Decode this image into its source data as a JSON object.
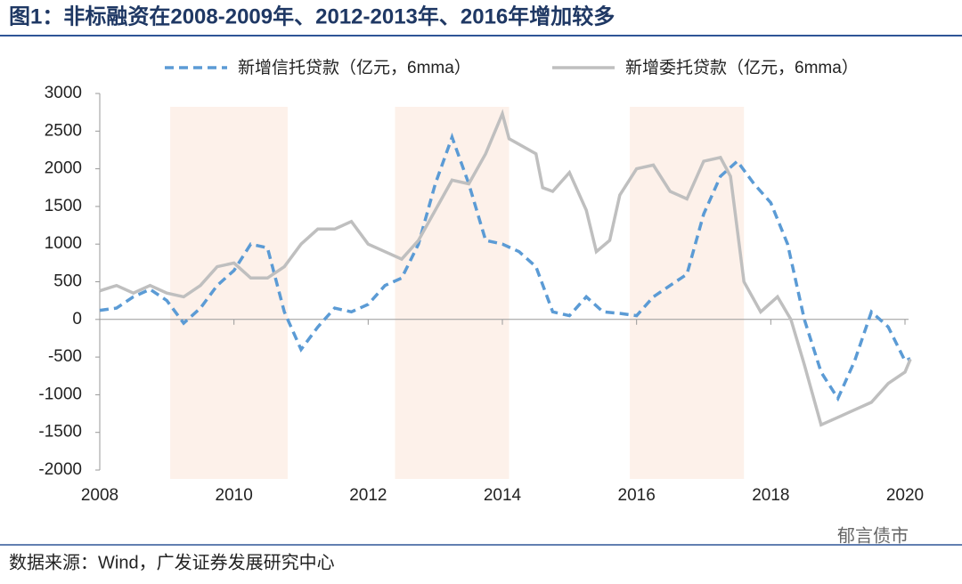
{
  "chart_data": {
    "type": "line",
    "title": "图1：非标融资在2008-2009年、2012-2013年、2016年增加较多",
    "source": "数据来源：Wind，广发证券发展研究中心",
    "watermark": "郁言债市",
    "xlim": [
      2008,
      2020
    ],
    "xticks": [
      2008,
      2010,
      2012,
      2014,
      2016,
      2018,
      2020
    ],
    "ylim": [
      -2000,
      3000
    ],
    "yticks": [
      -2000,
      -1500,
      -1000,
      -500,
      0,
      500,
      1000,
      1500,
      2000,
      2500,
      3000
    ],
    "highlights": [
      [
        2009.05,
        2010.8
      ],
      [
        2012.4,
        2014.1
      ],
      [
        2015.9,
        2017.6
      ]
    ],
    "highlight_color": "#fdf1ea",
    "series": [
      {
        "name": "新增信托贷款（亿元，6mma）",
        "color": "#5b9bd5",
        "dash": true,
        "x": [
          2008.0,
          2008.25,
          2008.5,
          2008.75,
          2009.0,
          2009.25,
          2009.5,
          2009.75,
          2010.0,
          2010.25,
          2010.5,
          2010.75,
          2011.0,
          2011.25,
          2011.5,
          2011.75,
          2012.0,
          2012.25,
          2012.5,
          2012.75,
          2013.0,
          2013.25,
          2013.5,
          2013.75,
          2014.0,
          2014.25,
          2014.5,
          2014.75,
          2015.0,
          2015.25,
          2015.5,
          2015.75,
          2016.0,
          2016.25,
          2016.5,
          2016.75,
          2017.0,
          2017.25,
          2017.5,
          2017.75,
          2018.0,
          2018.25,
          2018.5,
          2018.75,
          2019.0,
          2019.25,
          2019.5,
          2019.75,
          2020.0,
          2020.08
        ],
        "values": [
          120,
          150,
          300,
          400,
          250,
          -50,
          150,
          450,
          650,
          1000,
          950,
          100,
          -400,
          -100,
          150,
          100,
          200,
          450,
          550,
          1000,
          1800,
          2420,
          1800,
          1050,
          1000,
          900,
          700,
          100,
          50,
          300,
          100,
          80,
          50,
          300,
          450,
          600,
          1400,
          1900,
          2100,
          1800,
          1550,
          1000,
          0,
          -700,
          -1050,
          -550,
          100,
          -100,
          -550,
          -520
        ]
      },
      {
        "name": "新增委托贷款（亿元，6mma）",
        "color": "#bfbfbf",
        "dash": false,
        "x": [
          2008.0,
          2008.25,
          2008.5,
          2008.75,
          2009.0,
          2009.25,
          2009.5,
          2009.75,
          2010.0,
          2010.25,
          2010.5,
          2010.75,
          2011.0,
          2011.25,
          2011.5,
          2011.75,
          2012.0,
          2012.25,
          2012.5,
          2012.75,
          2013.0,
          2013.25,
          2013.5,
          2013.75,
          2014.0,
          2014.1,
          2014.5,
          2014.6,
          2014.75,
          2015.0,
          2015.25,
          2015.4,
          2015.6,
          2015.75,
          2016.0,
          2016.25,
          2016.5,
          2016.75,
          2017.0,
          2017.25,
          2017.4,
          2017.6,
          2017.85,
          2018.1,
          2018.3,
          2018.5,
          2018.75,
          2019.0,
          2019.25,
          2019.5,
          2019.75,
          2020.0,
          2020.08
        ],
        "values": [
          380,
          450,
          350,
          450,
          350,
          300,
          450,
          700,
          750,
          550,
          550,
          700,
          1000,
          1200,
          1200,
          1300,
          1000,
          900,
          800,
          1050,
          1450,
          1850,
          1800,
          2200,
          2730,
          2400,
          2200,
          1750,
          1700,
          1950,
          1450,
          900,
          1050,
          1650,
          2000,
          2050,
          1700,
          1600,
          2100,
          2150,
          1900,
          500,
          100,
          300,
          0,
          -600,
          -1400,
          -1300,
          -1200,
          -1100,
          -850,
          -700,
          -530
        ]
      }
    ]
  }
}
